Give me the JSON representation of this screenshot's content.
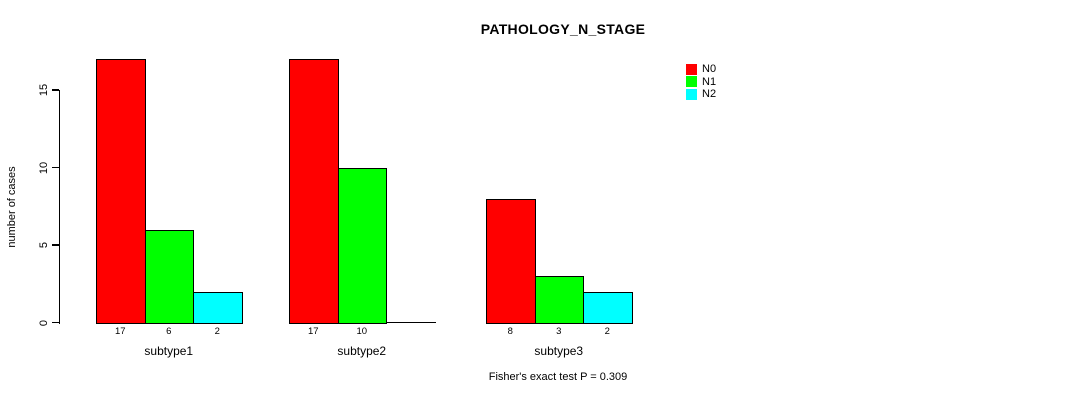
{
  "title": "PATHOLOGY_N_STAGE",
  "y_axis": {
    "label": "number of cases",
    "ticks": [
      "0",
      "5",
      "10",
      "15"
    ]
  },
  "footer": "Fisher's exact test P = 0.309",
  "legend": [
    {
      "label": "N0",
      "color": "#ff0000"
    },
    {
      "label": "N1",
      "color": "#00ff00"
    },
    {
      "label": "N2",
      "color": "#00ffff"
    }
  ],
  "chart_data": {
    "type": "bar",
    "title": "PATHOLOGY_N_STAGE",
    "categories": [
      "subtype1",
      "subtype2",
      "subtype3"
    ],
    "series": [
      {
        "name": "N0",
        "color": "#ff0000",
        "values": [
          17,
          17,
          8
        ]
      },
      {
        "name": "N1",
        "color": "#00ff00",
        "values": [
          6,
          10,
          3
        ]
      },
      {
        "name": "N2",
        "color": "#00ffff",
        "values": [
          2,
          0,
          2
        ]
      }
    ],
    "xlabel": "",
    "ylabel": "number of cases",
    "ylim": [
      0,
      17
    ],
    "yticks": [
      0,
      5,
      10,
      15
    ],
    "grid": false,
    "legend_position": "top-right-outside",
    "bar_value_labels": "shown under each bar, omitted when value is 0",
    "annotation": "Fisher's exact test P = 0.309"
  }
}
